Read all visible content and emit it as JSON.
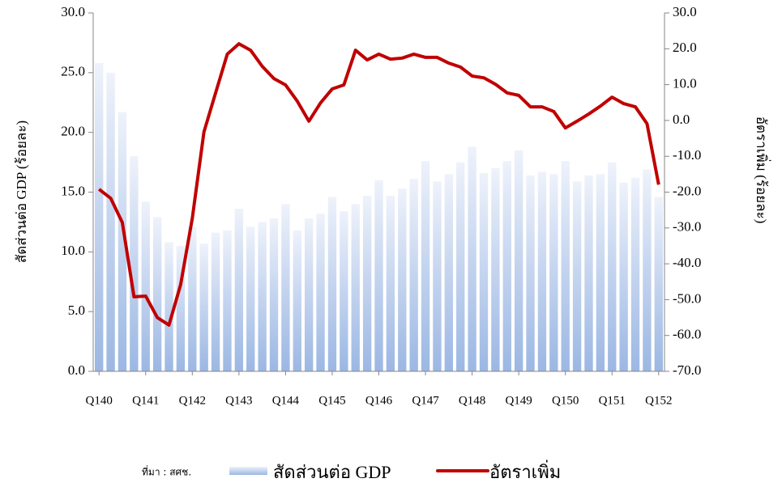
{
  "chart_data": {
    "type": "bar-line",
    "y_label": "สัดส่วนต่อ GDP (ร้อยละ)",
    "y2_label": "อัตราเพิ่ม (ร้อยละ)",
    "source": "ที่มา : สศช.",
    "categories": [
      "Q140",
      null,
      null,
      null,
      "Q141",
      null,
      null,
      null,
      "Q142",
      null,
      null,
      null,
      "Q143",
      null,
      null,
      null,
      "Q144",
      null,
      null,
      null,
      "Q145",
      null,
      null,
      null,
      "Q146",
      null,
      null,
      null,
      "Q147",
      null,
      null,
      null,
      "Q148",
      null,
      null,
      null,
      "Q149",
      null,
      null,
      null,
      "Q150",
      null,
      null,
      null,
      "Q151",
      null,
      null,
      null,
      "Q152"
    ],
    "series": [
      {
        "name": "สัดส่วนต่อ GDP",
        "type": "bar",
        "color": "#9bb7e3",
        "values": [
          25.8,
          25.0,
          21.7,
          18.0,
          14.2,
          12.9,
          10.8,
          10.5,
          12.1,
          10.7,
          11.6,
          11.8,
          13.6,
          12.1,
          12.5,
          12.8,
          14.0,
          11.8,
          12.8,
          13.2,
          14.6,
          13.4,
          14.0,
          14.7,
          16.0,
          14.7,
          15.3,
          16.1,
          17.6,
          15.9,
          16.5,
          17.5,
          18.8,
          16.6,
          17.0,
          17.6,
          18.5,
          16.4,
          16.7,
          16.5,
          17.6,
          15.9,
          16.4,
          16.5,
          17.5,
          15.8,
          16.2,
          16.9,
          14.6
        ]
      },
      {
        "name": "อัตราเพิ่ม",
        "type": "line",
        "axis": "y2",
        "color": "#c00000",
        "values": [
          -19.2,
          -21.7,
          -28.5,
          -49.2,
          -49.0,
          -55.0,
          -57.1,
          -45.8,
          -27.3,
          -3.2,
          7.7,
          18.5,
          21.4,
          19.6,
          15.1,
          11.7,
          9.9,
          5.4,
          -0.2,
          4.9,
          8.8,
          9.9,
          19.6,
          16.9,
          18.5,
          17.1,
          17.4,
          18.5,
          17.6,
          17.6,
          16.0,
          14.9,
          12.4,
          11.9,
          10.1,
          7.7,
          7.0,
          3.8,
          3.8,
          2.5,
          -2.1,
          -0.2,
          1.8,
          4.0,
          6.5,
          4.7,
          3.8,
          -0.9,
          -17.9
        ]
      }
    ],
    "ylim": [
      0,
      30
    ],
    "yticks": [
      {
        "value": 0,
        "label": "0.0"
      },
      {
        "value": 5,
        "label": "5.0"
      },
      {
        "value": 10,
        "label": "10.0"
      },
      {
        "value": 15,
        "label": "15.0"
      },
      {
        "value": 20,
        "label": "20.0"
      },
      {
        "value": 25,
        "label": "25.0"
      },
      {
        "value": 30,
        "label": "30.0"
      }
    ],
    "y2lim": [
      -70,
      30
    ],
    "y2ticks": [
      {
        "value": -70,
        "label": "-70.0"
      },
      {
        "value": -60,
        "label": "-60.0"
      },
      {
        "value": -50,
        "label": "-50.0"
      },
      {
        "value": -40,
        "label": "-40.0"
      },
      {
        "value": -30,
        "label": "-30.0"
      },
      {
        "value": -20,
        "label": "-20.0"
      },
      {
        "value": -10,
        "label": "-10.0"
      },
      {
        "value": 0,
        "label": "0.0"
      },
      {
        "value": 10,
        "label": "10.0"
      },
      {
        "value": 20,
        "label": "20.0"
      },
      {
        "value": 30,
        "label": "30.0"
      }
    ]
  }
}
